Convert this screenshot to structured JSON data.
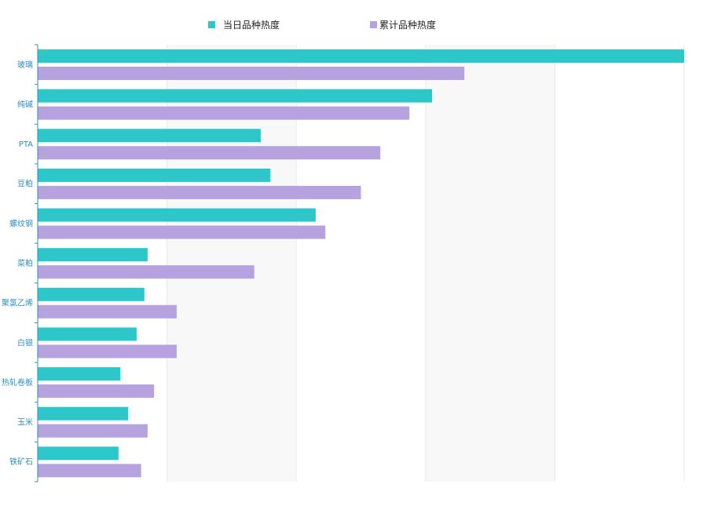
{
  "chart_data": {
    "type": "bar",
    "orientation": "horizontal",
    "categories": [
      "玻璃",
      "纯碱",
      "PTA",
      "豆粕",
      "螺纹钢",
      "菜粕",
      "聚氯乙烯",
      "白银",
      "热轧卷板",
      "玉米",
      "铁矿石"
    ],
    "series": [
      {
        "name": "当日品种热度",
        "color": "#2ec7c9",
        "values": [
          100,
          61,
          34.5,
          36,
          43,
          17,
          16.5,
          15.3,
          12.8,
          14,
          12.5
        ]
      },
      {
        "name": "累计品种热度",
        "color": "#b6a2de",
        "values": [
          66,
          57.5,
          53,
          50,
          44.5,
          33.5,
          21.5,
          21.5,
          18,
          17,
          16
        ]
      }
    ],
    "xlim": [
      0,
      100
    ],
    "x_gridlines": 5,
    "grid": true,
    "banded_background": true,
    "x_tick_labels_visible": false,
    "legend_position": "top-center",
    "colors": {
      "axis": "#2e8fc4",
      "band": "#f8f8f8",
      "grid": "#e9e9e9"
    }
  }
}
